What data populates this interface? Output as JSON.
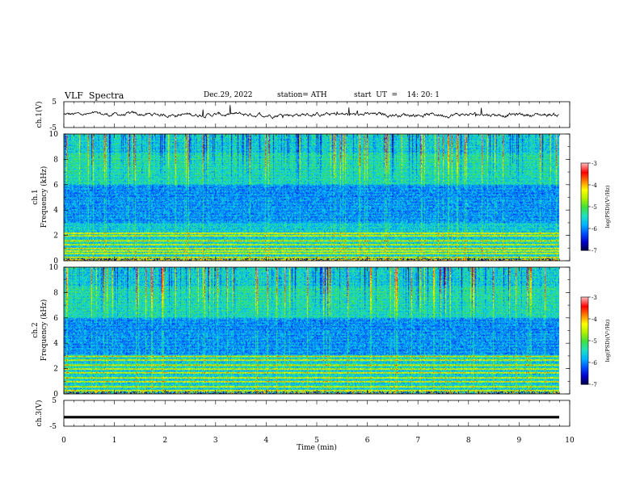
{
  "header": {
    "title": "VLF  Spectra",
    "date": "Dec.29, 2022",
    "station": "station= ATH",
    "start": "start  UT  =    14: 20: 1"
  },
  "chart_data": [
    {
      "type": "line",
      "panel": "ch1-waveform",
      "ylabel": "ch.1(V)",
      "ylim": [
        -5,
        5
      ],
      "yticks": [
        "5",
        "-5"
      ],
      "xlim": [
        0,
        10
      ],
      "description_series": "ch.1 waveform (noisy, near 0 V, spikes ~ +/-2 V)"
    },
    {
      "type": "heatmap",
      "panel": "ch1-spectrogram",
      "ylabel": "ch.1\nFrequency  (kHz)",
      "ylabel_line1": "ch.1",
      "ylabel_line2": "Frequency  (kHz)",
      "ylim": [
        0,
        10
      ],
      "yticks": [
        "10",
        "8",
        "6",
        "4",
        "2",
        "0"
      ],
      "xlim": [
        0,
        9.83
      ],
      "colorbar": {
        "label": "log(PSD)(V²/Hz)",
        "range": [
          -7,
          -3
        ],
        "ticks": [
          "-3",
          "-4",
          "-5",
          "-6",
          "-7"
        ]
      },
      "strong_bands_khz": [
        0.1,
        0.3,
        0.6,
        0.8,
        1.0,
        1.3,
        1.6,
        2.0,
        2.2
      ],
      "weak_band_khz": [
        2.5,
        5.0
      ]
    },
    {
      "type": "heatmap",
      "panel": "ch2-spectrogram",
      "ylabel_line1": "ch.2",
      "ylabel_line2": "Frequency  (kHz)",
      "ylim": [
        0,
        10
      ],
      "yticks": [
        "10",
        "8",
        "6",
        "4",
        "2",
        "0"
      ],
      "xlim": [
        0,
        9.83
      ],
      "colorbar": {
        "label": "log(PSD)(V²/Hz)",
        "range": [
          -7,
          -3
        ],
        "ticks": [
          "-3",
          "-4",
          "-5",
          "-6",
          "-7"
        ]
      },
      "strong_bands_khz": [
        0.3,
        0.6,
        1.0,
        1.3,
        1.7,
        2.0,
        2.3,
        2.7,
        3.0
      ]
    },
    {
      "type": "line",
      "panel": "ch3-waveform",
      "ylabel": "ch.3(V)",
      "ylim": [
        -5,
        5
      ],
      "yticks": [
        "5",
        "-5"
      ],
      "xlim": [
        0,
        10
      ],
      "value_v": -1.5
    }
  ],
  "xaxis": {
    "label": "Time  (min)",
    "ticks": [
      "0",
      "1",
      "2",
      "3",
      "4",
      "5",
      "6",
      "7",
      "8",
      "9",
      "10"
    ],
    "range": [
      0,
      10
    ]
  },
  "colors": {
    "scale": [
      "#000040",
      "#0000c8",
      "#0050ff",
      "#00b4ff",
      "#20e0c0",
      "#40e040",
      "#b0f000",
      "#ffff00",
      "#ff8000",
      "#ff0000",
      "#ffb0b0"
    ]
  }
}
